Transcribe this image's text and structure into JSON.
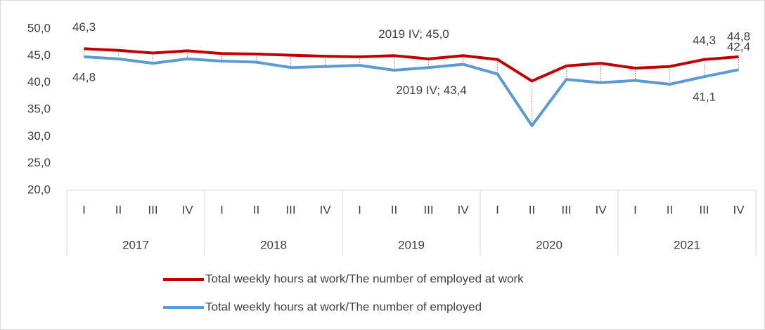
{
  "chart_data": {
    "type": "line",
    "categories": [
      "I",
      "II",
      "III",
      "IV",
      "I",
      "II",
      "III",
      "IV",
      "I",
      "II",
      "III",
      "IV",
      "I",
      "II",
      "III",
      "IV",
      "I",
      "II",
      "III",
      "IV"
    ],
    "groups": [
      "2017",
      "2018",
      "2019",
      "2020",
      "2021"
    ],
    "series": [
      {
        "name": "Total weekly hours at work/The number of employed at work",
        "color": "#c00000",
        "values": [
          46.3,
          46.0,
          45.5,
          45.9,
          45.4,
          45.3,
          45.1,
          44.9,
          44.8,
          45.0,
          44.4,
          45.0,
          44.3,
          40.3,
          43.1,
          43.6,
          42.7,
          43.0,
          44.3,
          44.8
        ],
        "value_labels": [
          "46,3",
          null,
          null,
          null,
          null,
          null,
          null,
          null,
          null,
          null,
          null,
          "2019 IV; 45,0",
          null,
          null,
          null,
          null,
          null,
          null,
          "44,3",
          "44,8"
        ]
      },
      {
        "name": "Total weekly hours at work/The number of employed",
        "color": "#5b9bd5",
        "values": [
          44.8,
          44.4,
          43.6,
          44.4,
          44.0,
          43.8,
          42.8,
          43.0,
          43.2,
          42.3,
          42.8,
          43.4,
          41.6,
          32.0,
          40.6,
          40.0,
          40.4,
          39.7,
          41.1,
          42.4
        ],
        "value_labels": [
          "44,8",
          null,
          null,
          null,
          null,
          null,
          null,
          null,
          null,
          null,
          null,
          "2019 IV; 43,4",
          null,
          null,
          null,
          null,
          null,
          null,
          "41,1",
          "42,4"
        ]
      }
    ],
    "ylim": [
      20,
      50
    ],
    "yticks": [
      {
        "value": 20,
        "label": "20,0"
      },
      {
        "value": 25,
        "label": "25,0"
      },
      {
        "value": 30,
        "label": "30,0"
      },
      {
        "value": 35,
        "label": "35,0"
      },
      {
        "value": 40,
        "label": "40,0"
      },
      {
        "value": 45,
        "label": "45,0"
      },
      {
        "value": 50,
        "label": "50,0"
      }
    ],
    "drop_lines": true,
    "legend": "bottom"
  }
}
